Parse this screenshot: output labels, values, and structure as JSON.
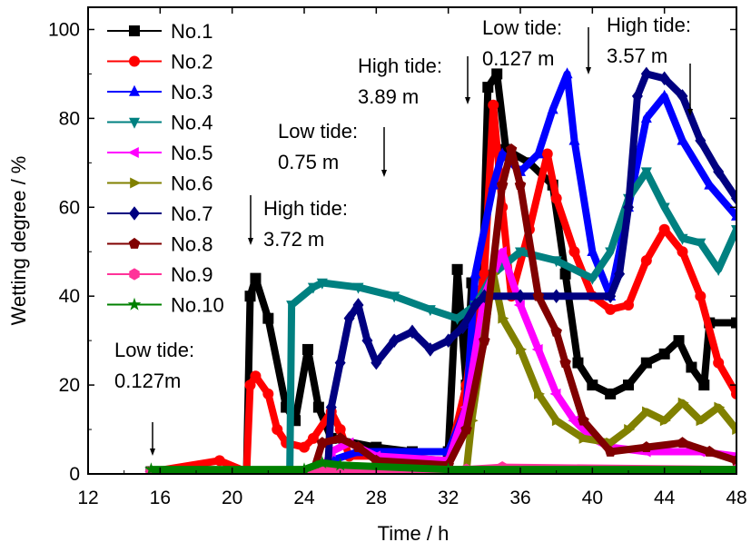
{
  "chart_data": {
    "type": "line",
    "xlabel": "Time / h",
    "ylabel": "Wetting degree / %",
    "xlim": [
      12,
      48
    ],
    "ylim": [
      0,
      105
    ],
    "xticks": [
      12,
      16,
      20,
      24,
      28,
      32,
      36,
      40,
      44,
      48
    ],
    "yticks": [
      0,
      20,
      40,
      60,
      80,
      100
    ],
    "grid": false,
    "legend": "top-left",
    "series": [
      {
        "name": "No.1",
        "color": "#000000",
        "marker": "square",
        "points": [
          [
            15.5,
            0.5
          ],
          [
            20.8,
            0.5
          ],
          [
            21,
            40
          ],
          [
            21.3,
            44
          ],
          [
            22,
            35
          ],
          [
            23,
            15
          ],
          [
            23.5,
            12
          ],
          [
            24.2,
            28
          ],
          [
            24.8,
            15
          ],
          [
            25.5,
            8
          ],
          [
            28,
            6
          ],
          [
            30,
            5
          ],
          [
            32,
            5
          ],
          [
            32.5,
            46
          ],
          [
            33,
            20
          ],
          [
            33.3,
            43
          ],
          [
            33.8,
            30
          ],
          [
            34.2,
            87
          ],
          [
            34.7,
            90
          ],
          [
            35.2,
            73
          ],
          [
            36.5,
            70
          ],
          [
            37.8,
            65
          ],
          [
            38.5,
            45
          ],
          [
            39.2,
            25
          ],
          [
            40,
            20
          ],
          [
            41,
            18
          ],
          [
            42,
            20
          ],
          [
            43,
            25
          ],
          [
            44,
            27
          ],
          [
            44.8,
            30
          ],
          [
            45.5,
            24
          ],
          [
            46.2,
            20
          ],
          [
            46.5,
            34
          ],
          [
            48,
            34
          ]
        ]
      },
      {
        "name": "No.2",
        "color": "#ff0000",
        "marker": "circle",
        "points": [
          [
            15.5,
            0.5
          ],
          [
            19.3,
            3
          ],
          [
            20.8,
            0.5
          ],
          [
            21,
            20
          ],
          [
            21.3,
            22
          ],
          [
            22,
            18
          ],
          [
            22.5,
            10
          ],
          [
            23,
            7
          ],
          [
            24,
            6
          ],
          [
            24.5,
            8
          ],
          [
            25.5,
            14
          ],
          [
            26,
            10
          ],
          [
            26.5,
            4
          ],
          [
            28,
            4
          ],
          [
            32,
            3
          ],
          [
            33,
            20
          ],
          [
            33.5,
            35
          ],
          [
            34,
            45
          ],
          [
            34.5,
            83
          ],
          [
            35,
            60
          ],
          [
            35.5,
            40
          ],
          [
            36.5,
            55
          ],
          [
            37.5,
            72
          ],
          [
            38,
            62
          ],
          [
            39,
            50
          ],
          [
            40,
            40
          ],
          [
            41,
            37
          ],
          [
            42,
            38
          ],
          [
            43,
            48
          ],
          [
            44,
            55
          ],
          [
            45,
            50
          ],
          [
            46,
            40
          ],
          [
            47,
            25
          ],
          [
            48,
            18
          ]
        ]
      },
      {
        "name": "No.3",
        "color": "#0000ff",
        "marker": "triangle-up",
        "points": [
          [
            15.5,
            0.5
          ],
          [
            25,
            1
          ],
          [
            25.5,
            3
          ],
          [
            27,
            5
          ],
          [
            32,
            5
          ],
          [
            33,
            15
          ],
          [
            33.5,
            45
          ],
          [
            34.5,
            65
          ],
          [
            35,
            72
          ],
          [
            36,
            68
          ],
          [
            37,
            72
          ],
          [
            37.8,
            82
          ],
          [
            38.6,
            90
          ],
          [
            39,
            75
          ],
          [
            40,
            50
          ],
          [
            41,
            40
          ],
          [
            42,
            60
          ],
          [
            43,
            80
          ],
          [
            44,
            85
          ],
          [
            45,
            75
          ],
          [
            46.5,
            65
          ],
          [
            48,
            58
          ]
        ]
      },
      {
        "name": "No.4",
        "color": "#008080",
        "marker": "triangle-down",
        "points": [
          [
            15.5,
            0.5
          ],
          [
            23.2,
            0.5
          ],
          [
            23.3,
            38
          ],
          [
            24.5,
            42
          ],
          [
            25,
            43
          ],
          [
            27,
            42
          ],
          [
            29,
            40
          ],
          [
            31,
            37
          ],
          [
            32.5,
            35
          ],
          [
            33.5,
            38
          ],
          [
            34.5,
            45
          ],
          [
            36,
            50
          ],
          [
            38,
            48
          ],
          [
            40,
            44
          ],
          [
            41,
            50
          ],
          [
            42,
            62
          ],
          [
            43,
            68
          ],
          [
            44,
            60
          ],
          [
            45,
            53
          ],
          [
            46,
            52
          ],
          [
            47,
            46
          ],
          [
            48,
            55
          ]
        ]
      },
      {
        "name": "No.5",
        "color": "#ff00ff",
        "marker": "triangle-left",
        "points": [
          [
            15.5,
            0.5
          ],
          [
            25,
            0.5
          ],
          [
            25.5,
            5
          ],
          [
            26.5,
            7
          ],
          [
            28,
            4
          ],
          [
            32,
            3
          ],
          [
            33,
            15
          ],
          [
            34,
            40
          ],
          [
            35,
            50
          ],
          [
            36,
            38
          ],
          [
            37,
            28
          ],
          [
            38,
            18
          ],
          [
            39,
            12
          ],
          [
            40,
            8
          ],
          [
            41,
            6
          ],
          [
            43,
            5
          ],
          [
            46,
            5
          ],
          [
            48,
            4
          ]
        ]
      },
      {
        "name": "No.6",
        "color": "#808000",
        "marker": "triangle-right",
        "points": [
          [
            15.5,
            0.5
          ],
          [
            33,
            0.5
          ],
          [
            33.3,
            12
          ],
          [
            34.5,
            45
          ],
          [
            35,
            35
          ],
          [
            36,
            28
          ],
          [
            37,
            18
          ],
          [
            38,
            12
          ],
          [
            39.5,
            8
          ],
          [
            41,
            7
          ],
          [
            42,
            10
          ],
          [
            43,
            14
          ],
          [
            44,
            12
          ],
          [
            45,
            16
          ],
          [
            46,
            12
          ],
          [
            47,
            15
          ],
          [
            48,
            10
          ]
        ]
      },
      {
        "name": "No.7",
        "color": "#000080",
        "marker": "diamond",
        "points": [
          [
            15.5,
            0.5
          ],
          [
            25.3,
            0.5
          ],
          [
            25.5,
            15
          ],
          [
            26,
            25
          ],
          [
            26.5,
            35
          ],
          [
            27,
            38
          ],
          [
            27.5,
            30
          ],
          [
            28,
            25
          ],
          [
            29,
            30
          ],
          [
            30,
            32
          ],
          [
            31,
            28
          ],
          [
            32,
            30
          ],
          [
            32.8,
            33
          ],
          [
            33.5,
            38
          ],
          [
            34,
            40
          ],
          [
            36,
            40
          ],
          [
            38,
            40
          ],
          [
            41,
            40
          ],
          [
            41.5,
            45
          ],
          [
            42,
            60
          ],
          [
            42.5,
            85
          ],
          [
            43,
            90
          ],
          [
            44,
            89
          ],
          [
            45,
            85
          ],
          [
            46,
            75
          ],
          [
            47,
            68
          ],
          [
            48,
            62
          ]
        ]
      },
      {
        "name": "No.8",
        "color": "#800000",
        "marker": "pentagon",
        "points": [
          [
            15.5,
            0.5
          ],
          [
            24.5,
            0.5
          ],
          [
            25,
            7
          ],
          [
            26,
            8
          ],
          [
            27,
            6
          ],
          [
            28,
            3
          ],
          [
            32,
            2
          ],
          [
            33,
            10
          ],
          [
            34,
            30
          ],
          [
            35,
            65
          ],
          [
            35.5,
            73
          ],
          [
            36,
            65
          ],
          [
            37,
            40
          ],
          [
            38,
            32
          ],
          [
            38.5,
            25
          ],
          [
            39.5,
            12
          ],
          [
            41,
            5
          ],
          [
            43,
            6
          ],
          [
            45,
            7
          ],
          [
            46.5,
            5
          ],
          [
            48,
            3
          ]
        ]
      },
      {
        "name": "No.9",
        "color": "#ff3399",
        "marker": "hexagon",
        "points": [
          [
            15.5,
            0.5
          ],
          [
            25,
            1
          ],
          [
            33,
            1
          ],
          [
            35,
            1.5
          ],
          [
            48,
            1
          ]
        ]
      },
      {
        "name": "No.10",
        "color": "#008000",
        "marker": "star",
        "points": [
          [
            15.5,
            1
          ],
          [
            24,
            1
          ],
          [
            25,
            2.5
          ],
          [
            26,
            2
          ],
          [
            32,
            1
          ],
          [
            48,
            1
          ]
        ]
      }
    ],
    "annotations": [
      {
        "text1": "Low tide:",
        "text2": "0.127m",
        "x": 15.5
      },
      {
        "text1": "High tide:",
        "text2": "3.72 m",
        "x": 21
      },
      {
        "text1": "Low tide:",
        "text2": "0.75 m",
        "x": 28.5
      },
      {
        "text1": "High tide:",
        "text2": "3.89 m",
        "x": 33.1
      },
      {
        "text1": "Low tide:",
        "text2": "0.127 m",
        "x": 39.8
      },
      {
        "text1": "High tide:",
        "text2": "3.57 m",
        "x": 45.5
      }
    ]
  }
}
